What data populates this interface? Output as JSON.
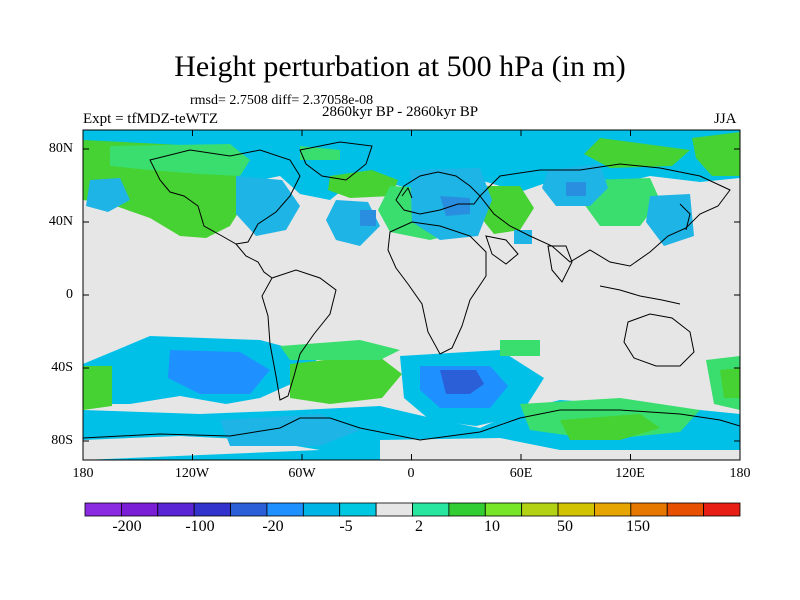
{
  "title": "Height perturbation at 500 hPa (in m)",
  "stats": "rmsd= 2.7508 diff= 2.37058e-08",
  "experiment": "Expt = tfMDZ-teWTZ",
  "period": "2860kyr BP - 2860kyr BP",
  "season": "JJA",
  "map": {
    "lat_labels": [
      "80N",
      "40N",
      "0",
      "40S",
      "80S"
    ],
    "lon_labels": [
      "180",
      "120W",
      "60W",
      "0",
      "60E",
      "120E",
      "180"
    ],
    "background_color": "#e6e6e6"
  },
  "colorbar": {
    "colors": [
      "#8a2be2",
      "#7a1fd6",
      "#5a25d4",
      "#3232cd",
      "#2a5fd8",
      "#1e90ff",
      "#00b4e6",
      "#00c8e0",
      "#e6e6e6",
      "#28e6a0",
      "#32cd32",
      "#78e628",
      "#b4d214",
      "#d2c300",
      "#e6a500",
      "#e67800",
      "#e65000",
      "#e61e14"
    ],
    "labels": [
      "-200",
      "-100",
      "-20",
      "-5",
      "2",
      "10",
      "50",
      "150"
    ]
  }
}
